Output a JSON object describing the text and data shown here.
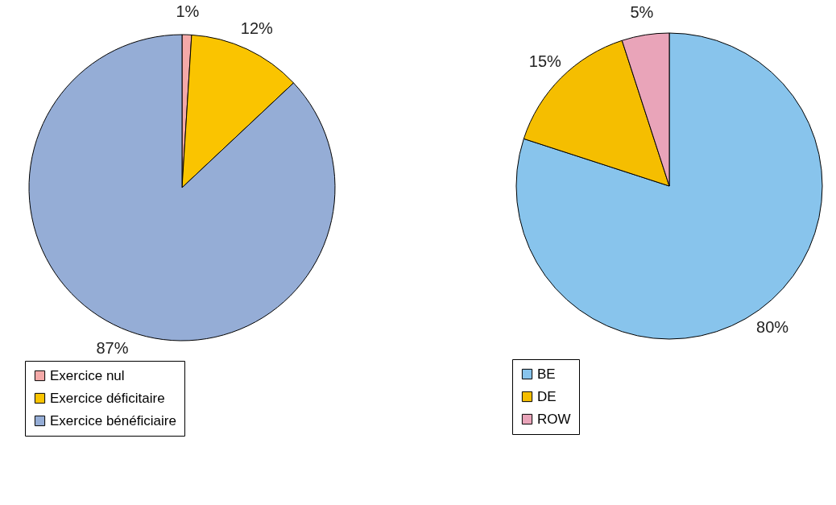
{
  "chart_data": [
    {
      "type": "pie",
      "categories": [
        "Exercice nul",
        "Exercice déficitaire",
        "Exercice bénéficiaire"
      ],
      "values": [
        1,
        12,
        87
      ],
      "colors": [
        "#f4a9a8",
        "#fac400",
        "#95add6"
      ],
      "value_labels": [
        "1%",
        "12%",
        "87%"
      ],
      "legend": "bottom"
    },
    {
      "type": "pie",
      "categories": [
        "BE",
        "DE",
        "ROW"
      ],
      "values": [
        80,
        15,
        5
      ],
      "colors": [
        "#88c4ec",
        "#f5be00",
        "#e9a4b9"
      ],
      "value_labels": [
        "80%",
        "15%",
        "5%"
      ],
      "legend": "bottom"
    }
  ]
}
